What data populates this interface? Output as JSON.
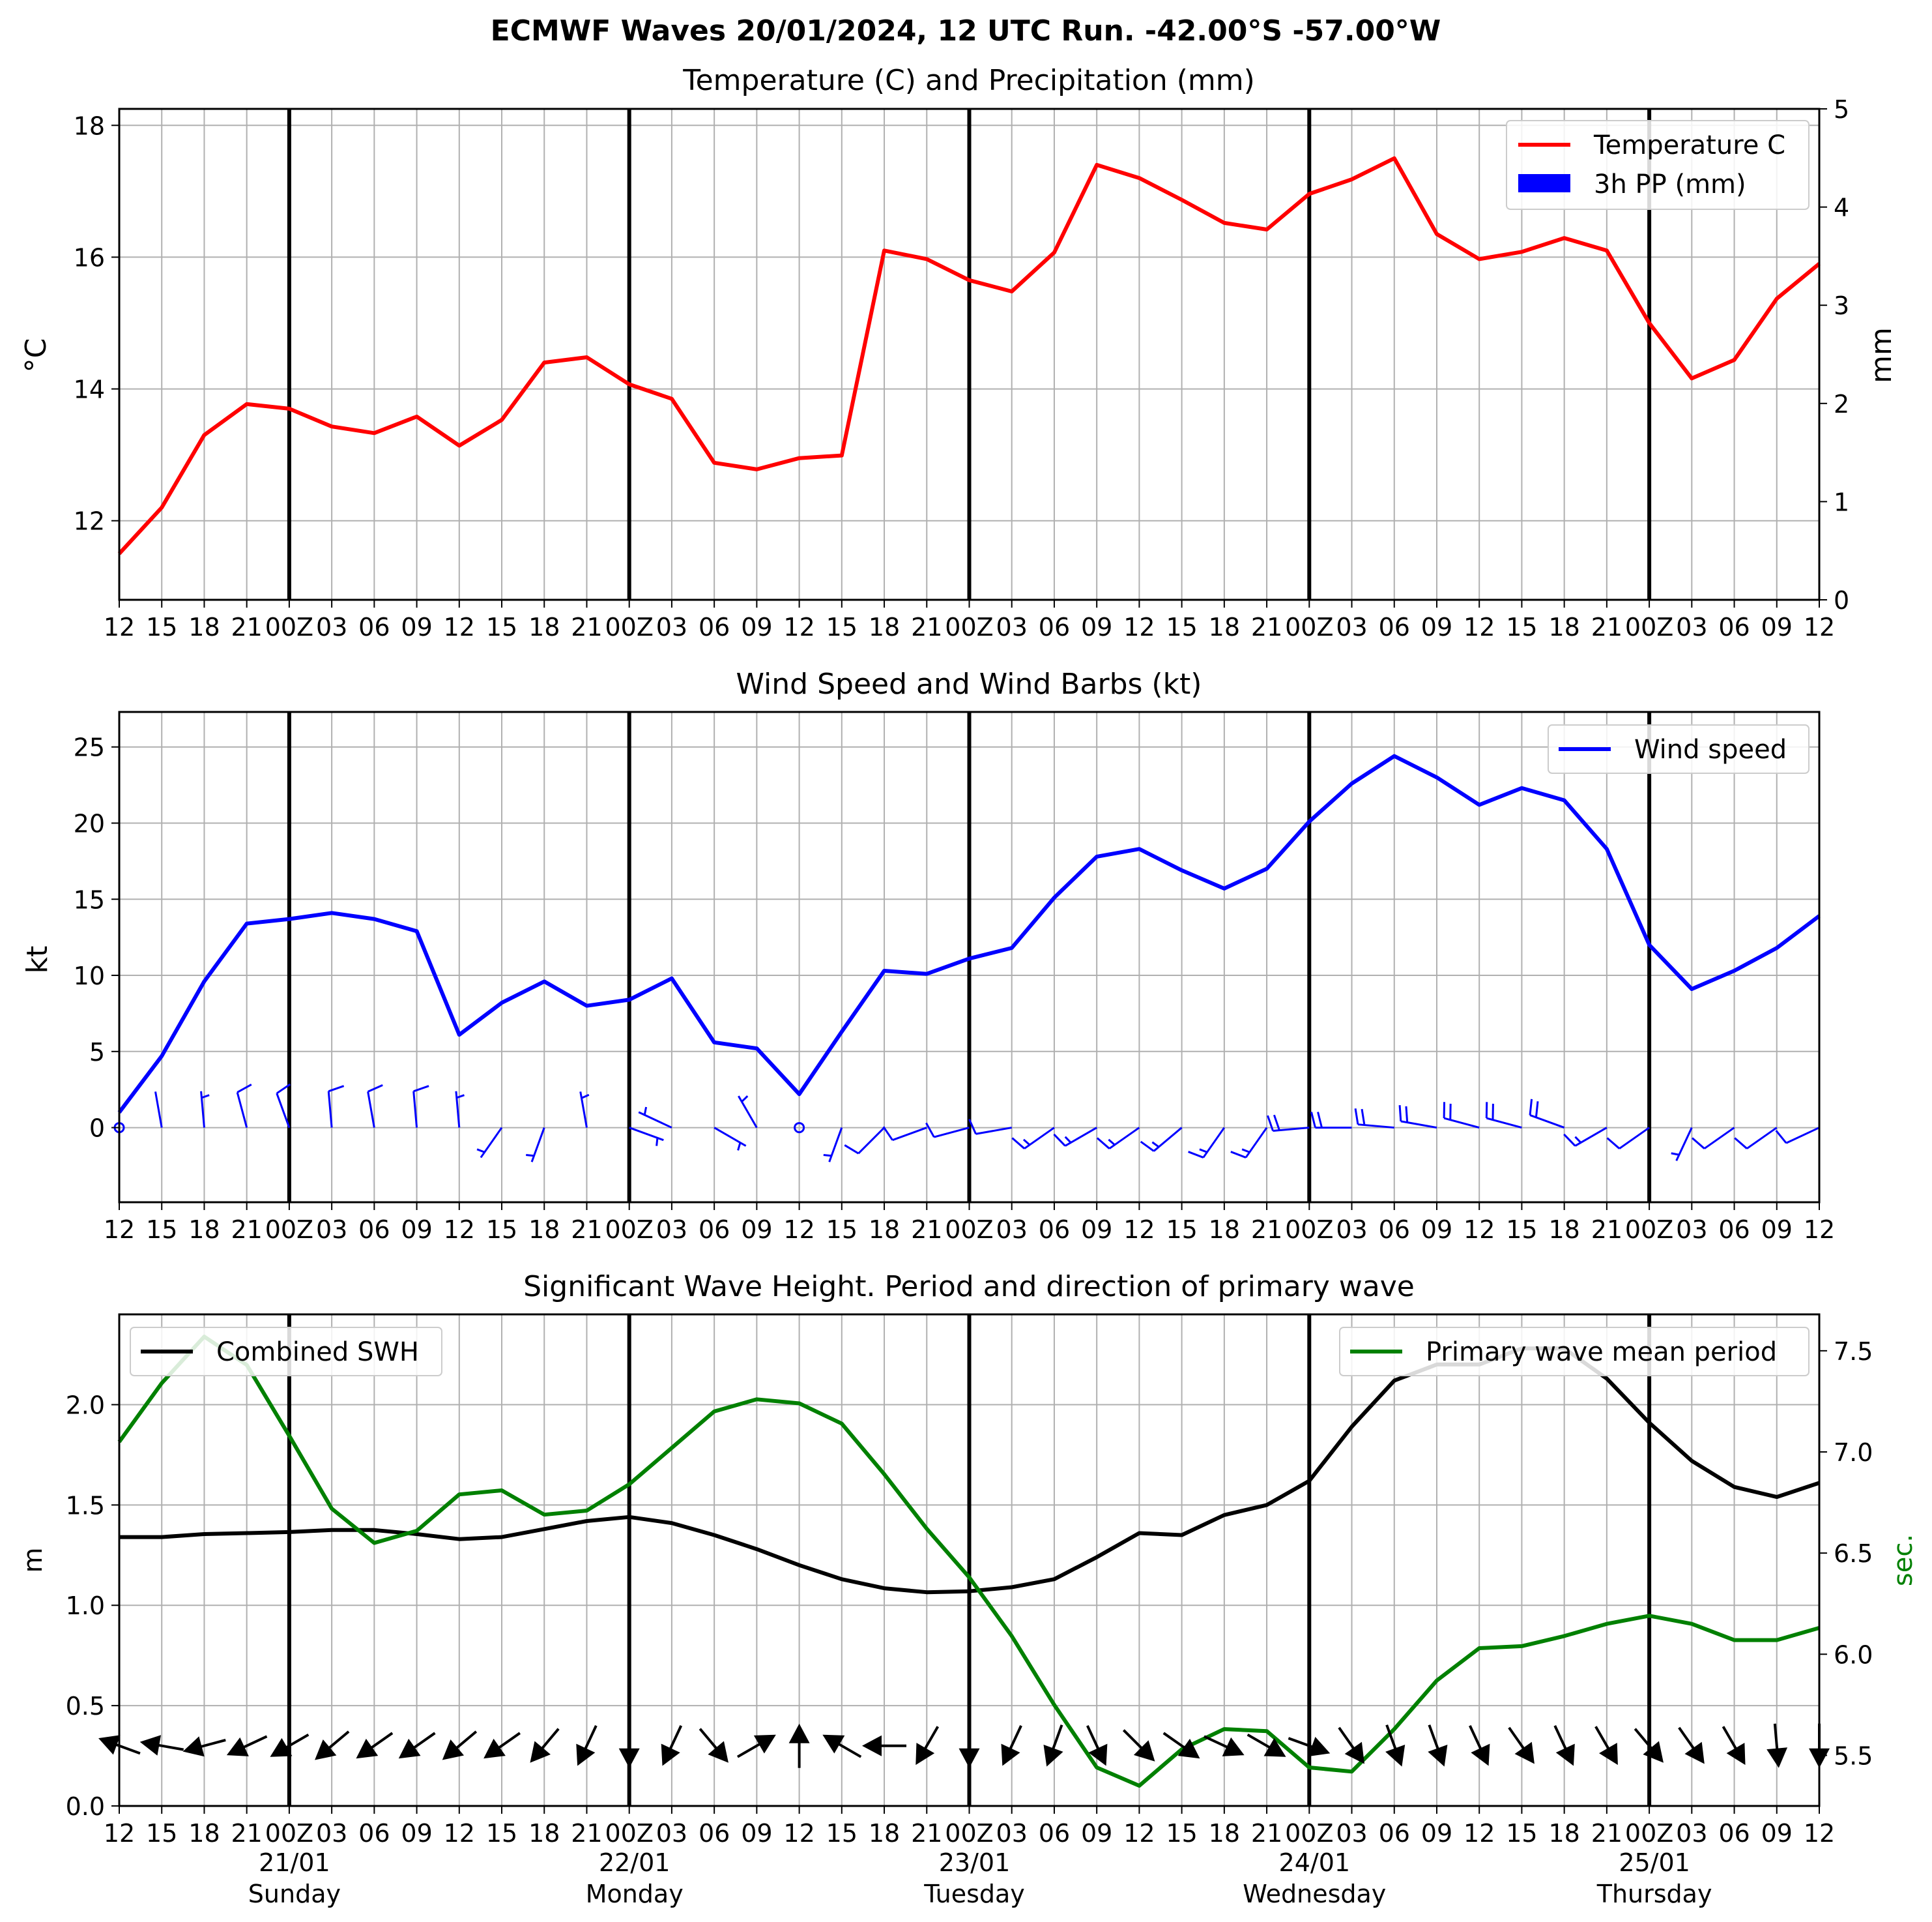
{
  "title": "ECMWF Waves 20/01/2024, 12 UTC Run. -42.00°S -57.00°W",
  "hour_ticks": [
    "12",
    "15",
    "18",
    "21",
    "00Z",
    "03",
    "06",
    "09",
    "12",
    "15",
    "18",
    "21",
    "00Z",
    "03",
    "06",
    "09",
    "12",
    "15",
    "18",
    "21",
    "00Z",
    "03",
    "06",
    "09",
    "12",
    "15",
    "18",
    "21",
    "00Z",
    "03",
    "06",
    "09",
    "12",
    "15",
    "18",
    "21",
    "00Z",
    "03",
    "06",
    "09",
    "12"
  ],
  "day_labels": [
    {
      "date": "21/01",
      "day": "Sunday"
    },
    {
      "date": "22/01",
      "day": "Monday"
    },
    {
      "date": "23/01",
      "day": "Tuesday"
    },
    {
      "date": "24/01",
      "day": "Wednesday"
    },
    {
      "date": "25/01",
      "day": "Thursday"
    }
  ],
  "colors": {
    "temperature": "#ff0000",
    "precip": "#0000ff",
    "wind": "#0000ff",
    "swh": "#000000",
    "period": "#008000",
    "day_line": "#000000",
    "grid": "#b0b0b0"
  },
  "chart_data": [
    {
      "type": "line",
      "title": "Temperature (C) and Precipitation (mm)",
      "ylabel": "$^\\circ$C",
      "y2label": "mm",
      "ylim": [
        10.8,
        18.25
      ],
      "y2lim": [
        0,
        5
      ],
      "yticks": [
        12,
        14,
        16,
        18
      ],
      "y2ticks": [
        0,
        1,
        2,
        3,
        4,
        5
      ],
      "grid": true,
      "legend": "top-right",
      "series": [
        {
          "name": "Temperature C",
          "values": [
            11.5,
            12.2,
            13.3,
            13.77,
            13.7,
            13.43,
            13.33,
            13.58,
            13.14,
            13.53,
            14.4,
            14.48,
            14.07,
            13.85,
            12.88,
            12.78,
            12.95,
            12.99,
            16.1,
            15.97,
            15.65,
            15.48,
            16.07,
            17.4,
            17.2,
            16.87,
            16.52,
            16.42,
            16.96,
            17.18,
            17.5,
            16.35,
            15.97,
            16.08,
            16.29,
            16.1,
            15.0,
            14.16,
            14.44,
            15.37,
            15.9
          ]
        },
        {
          "name": "3h PP (mm)",
          "values": []
        }
      ]
    },
    {
      "type": "line",
      "title": "Wind Speed and Wind Barbs (kt)",
      "ylabel": "kt",
      "ylim": [
        -4.9,
        27.3
      ],
      "yticks": [
        0,
        5,
        10,
        15,
        20,
        25
      ],
      "grid": true,
      "legend": "top-right",
      "series": [
        {
          "name": "Wind speed",
          "values": [
            1.0,
            4.7,
            9.6,
            13.4,
            13.7,
            14.1,
            13.7,
            12.9,
            6.1,
            8.2,
            9.6,
            8.0,
            8.4,
            9.8,
            5.6,
            5.2,
            2.2,
            6.3,
            10.3,
            10.1,
            11.1,
            11.8,
            15.1,
            17.8,
            18.3,
            16.9,
            15.7,
            17.0,
            20.1,
            22.6,
            24.4,
            23.0,
            21.2,
            22.3,
            21.5,
            18.3,
            12.0,
            9.1,
            10.3,
            11.8,
            13.9
          ]
        }
      ],
      "barb_direction_from_deg": [
        null,
        350,
        355,
        345,
        340,
        355,
        350,
        355,
        355,
        215,
        200,
        350,
        110,
        295,
        120,
        330,
        null,
        200,
        225,
        250,
        255,
        260,
        235,
        240,
        235,
        230,
        215,
        215,
        265,
        270,
        275,
        280,
        285,
        285,
        290,
        240,
        235,
        205,
        235,
        235,
        245
      ]
    },
    {
      "type": "line",
      "title": "Significant Wave Height. Period and direction of primary wave",
      "ylabel": "m",
      "y2label": "sec.",
      "ylim": [
        0.0,
        2.45
      ],
      "y2lim": [
        5.25,
        7.68
      ],
      "yticks": [
        0.0,
        0.5,
        1.0,
        1.5,
        2.0
      ],
      "y2ticks": [
        5.5,
        6.0,
        6.5,
        7.0,
        7.5
      ],
      "grid": true,
      "legend": [
        "top-left",
        "top-right"
      ],
      "series": [
        {
          "name": "Combined SWH",
          "values": [
            1.34,
            1.34,
            1.355,
            1.36,
            1.365,
            1.375,
            1.375,
            1.355,
            1.33,
            1.34,
            1.38,
            1.42,
            1.44,
            1.41,
            1.35,
            1.28,
            1.2,
            1.13,
            1.085,
            1.065,
            1.07,
            1.09,
            1.13,
            1.24,
            1.36,
            1.35,
            1.45,
            1.5,
            1.62,
            1.89,
            2.12,
            2.2,
            2.2,
            2.28,
            2.28,
            2.13,
            1.91,
            1.72,
            1.59,
            1.54,
            1.61
          ]
        },
        {
          "name": "Primary wave mean period",
          "values": [
            7.05,
            7.34,
            7.57,
            7.43,
            7.08,
            6.72,
            6.55,
            6.61,
            6.79,
            6.81,
            6.69,
            6.71,
            6.84,
            7.02,
            7.2,
            7.26,
            7.24,
            7.14,
            6.89,
            6.62,
            6.38,
            6.09,
            5.75,
            5.44,
            5.35,
            5.53,
            5.63,
            5.62,
            5.44,
            5.42,
            5.63,
            5.87,
            6.03,
            6.04,
            6.09,
            6.15,
            6.19,
            6.15,
            6.07,
            6.07,
            6.13
          ]
        }
      ],
      "wave_direction_to_deg": [
        290,
        280,
        255,
        245,
        240,
        230,
        235,
        235,
        230,
        235,
        220,
        205,
        180,
        205,
        140,
        60,
        0,
        300,
        270,
        210,
        180,
        205,
        200,
        155,
        135,
        125,
        115,
        120,
        110,
        145,
        160,
        160,
        155,
        145,
        155,
        150,
        140,
        145,
        150,
        175,
        180
      ]
    }
  ]
}
